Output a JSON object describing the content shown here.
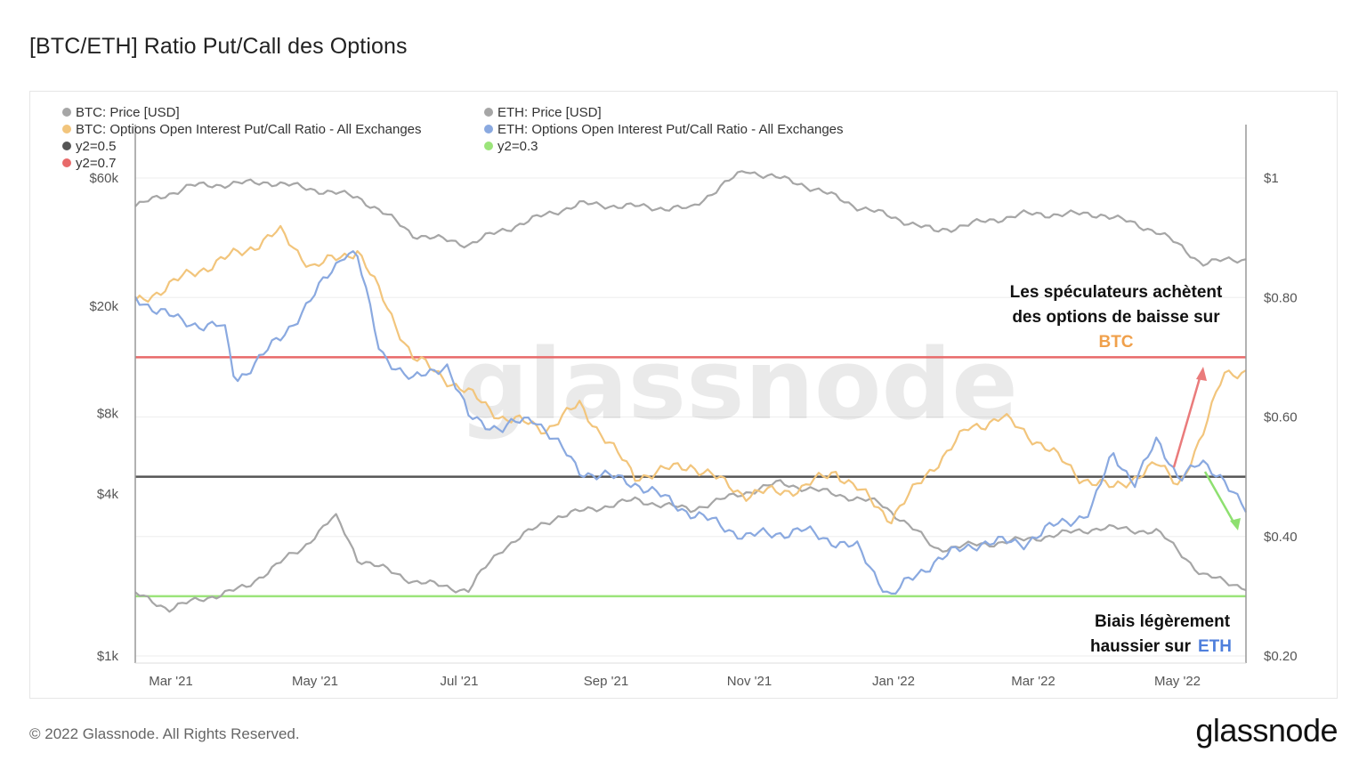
{
  "page": {
    "title": "[BTC/ETH] Ratio Put/Call des Options",
    "copyright": "© 2022 Glassnode. All Rights Reserved.",
    "logo_text": "glassnode",
    "watermark": "glassnode"
  },
  "colors": {
    "btc_price": "#a6a6a6",
    "eth_price": "#a6a6a6",
    "btc_ratio": "#f2c57c",
    "eth_ratio": "#8aa9e0",
    "y2_05": "#555555",
    "y2_07": "#e86a6a",
    "y2_03": "#9be47a"
  },
  "annotations": {
    "btc_line1": "Les spéculateurs achètent",
    "btc_line2": "des options de baisse sur",
    "btc_word": "BTC",
    "eth_line1": "Biais légèrement",
    "eth_line2_prefix": "haussier sur",
    "eth_word": "ETH"
  },
  "chart_data": {
    "type": "line",
    "x_range": [
      "2021-02-15",
      "2022-05-30"
    ],
    "x_ticks": [
      "Mar '21",
      "May '21",
      "Jul '21",
      "Sep '21",
      "Nov '21",
      "Jan '22",
      "Mar '22",
      "May '22"
    ],
    "y_left": {
      "scale": "log",
      "range": [
        1000,
        60000
      ],
      "ticks": [
        "$60k",
        "$20k",
        "$8k",
        "$4k",
        "$1k"
      ]
    },
    "y_right": {
      "range": [
        0.2,
        1.0
      ],
      "ticks": [
        "$1",
        "$0.80",
        "$0.60",
        "$0.40",
        "$0.20"
      ]
    },
    "legend": [
      {
        "name": "BTC: Price [USD]",
        "color": "#a6a6a6"
      },
      {
        "name": "ETH: Price [USD]",
        "color": "#a6a6a6"
      },
      {
        "name": "BTC: Options Open Interest Put/Call Ratio - All Exchanges",
        "color": "#f2c57c"
      },
      {
        "name": "ETH: Options Open Interest Put/Call Ratio - All Exchanges",
        "color": "#8aa9e0"
      },
      {
        "name": "y2=0.5",
        "color": "#555555"
      },
      {
        "name": "y2=0.3",
        "color": "#9be47a"
      },
      {
        "name": "y2=0.7",
        "color": "#e86a6a"
      }
    ],
    "series": [
      {
        "name": "BTC: Price [USD]",
        "axis": "left",
        "x": [
          0,
          0.05,
          0.12,
          0.2,
          0.25,
          0.3,
          0.4,
          0.5,
          0.55,
          0.6,
          0.65,
          0.72,
          0.8,
          0.87,
          0.92,
          0.96,
          1.0
        ],
        "values": [
          47000,
          56000,
          58000,
          51000,
          37000,
          34000,
          48000,
          46000,
          64000,
          57000,
          47000,
          38000,
          44000,
          44000,
          38000,
          29000,
          30000
        ]
      },
      {
        "name": "ETH: Price [USD]",
        "axis": "left",
        "x": [
          0,
          0.03,
          0.1,
          0.15,
          0.18,
          0.2,
          0.25,
          0.3,
          0.33,
          0.38,
          0.45,
          0.5,
          0.58,
          0.63,
          0.67,
          0.72,
          0.8,
          0.87,
          0.92,
          0.96,
          1.0
        ],
        "values": [
          1700,
          1500,
          1800,
          2500,
          3300,
          2300,
          1900,
          1750,
          2500,
          3300,
          3800,
          3500,
          4400,
          4000,
          3700,
          2500,
          2700,
          3000,
          2900,
          2000,
          1800
        ]
      },
      {
        "name": "BTC: Options Open Interest Put/Call Ratio - All Exchanges",
        "axis": "right",
        "x": [
          0,
          0.05,
          0.1,
          0.13,
          0.16,
          0.2,
          0.25,
          0.3,
          0.33,
          0.37,
          0.4,
          0.45,
          0.5,
          0.55,
          0.6,
          0.63,
          0.65,
          0.68,
          0.72,
          0.75,
          0.78,
          0.82,
          0.85,
          0.88,
          0.92,
          0.94,
          0.96,
          0.98,
          1.0
        ],
        "values": [
          0.79,
          0.84,
          0.88,
          0.91,
          0.85,
          0.88,
          0.7,
          0.64,
          0.6,
          0.58,
          0.62,
          0.5,
          0.52,
          0.47,
          0.48,
          0.51,
          0.48,
          0.43,
          0.52,
          0.58,
          0.6,
          0.55,
          0.5,
          0.48,
          0.52,
          0.49,
          0.56,
          0.68,
          0.67
        ]
      },
      {
        "name": "ETH: Options Open Interest Put/Call Ratio - All Exchanges",
        "axis": "right",
        "x": [
          0,
          0.04,
          0.08,
          0.09,
          0.13,
          0.16,
          0.19,
          0.2,
          0.22,
          0.25,
          0.28,
          0.3,
          0.33,
          0.36,
          0.4,
          0.45,
          0.5,
          0.55,
          0.6,
          0.65,
          0.68,
          0.7,
          0.72,
          0.76,
          0.8,
          0.83,
          0.86,
          0.88,
          0.9,
          0.92,
          0.94,
          0.96,
          0.98,
          1.0
        ],
        "values": [
          0.8,
          0.76,
          0.75,
          0.66,
          0.73,
          0.8,
          0.88,
          0.87,
          0.71,
          0.66,
          0.69,
          0.6,
          0.58,
          0.6,
          0.51,
          0.49,
          0.44,
          0.4,
          0.41,
          0.38,
          0.3,
          0.33,
          0.36,
          0.39,
          0.39,
          0.42,
          0.44,
          0.54,
          0.49,
          0.56,
          0.5,
          0.52,
          0.5,
          0.44
        ]
      }
    ],
    "reference_lines": [
      {
        "name": "y2=0.7",
        "axis": "right",
        "value": 0.7
      },
      {
        "name": "y2=0.5",
        "axis": "right",
        "value": 0.5
      },
      {
        "name": "y2=0.3",
        "axis": "right",
        "value": 0.3
      }
    ],
    "grid": true
  }
}
